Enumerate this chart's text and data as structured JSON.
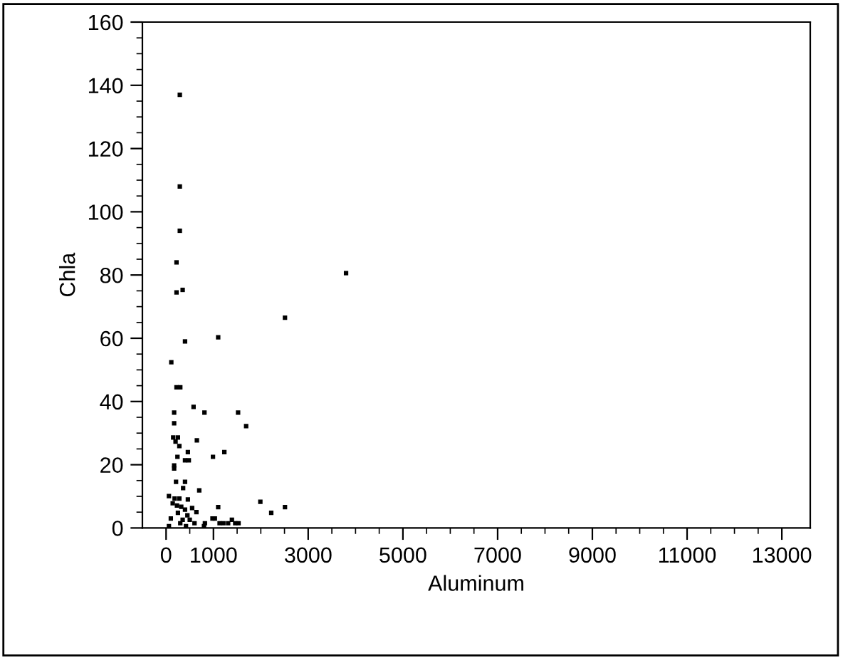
{
  "chart_data": {
    "type": "scatter",
    "xlabel": "Aluminum",
    "ylabel": "Chla",
    "marker": "square",
    "grid": false,
    "legend": false,
    "xlim": [
      -500,
      13600
    ],
    "ylim": [
      0,
      160
    ],
    "xticks": [
      0,
      {
        "value": 500,
        "label": null
      },
      1000,
      {
        "value": 1500,
        "label": null
      },
      {
        "value": 2000,
        "label": null
      },
      {
        "value": 2500,
        "label": null
      },
      3000,
      {
        "value": 3500,
        "label": null
      },
      {
        "value": 4000,
        "label": null
      },
      {
        "value": 4500,
        "label": null
      },
      5000,
      {
        "value": 5500,
        "label": null
      },
      {
        "value": 6000,
        "label": null
      },
      {
        "value": 6500,
        "label": null
      },
      7000,
      {
        "value": 7500,
        "label": null
      },
      {
        "value": 8000,
        "label": null
      },
      {
        "value": 8500,
        "label": null
      },
      9000,
      {
        "value": 9500,
        "label": null
      },
      {
        "value": 10000,
        "label": null
      },
      {
        "value": 10500,
        "label": null
      },
      11000,
      {
        "value": 11500,
        "label": null
      },
      {
        "value": 12000,
        "label": null
      },
      {
        "value": 12500,
        "label": null
      },
      13000
    ],
    "yticks": [
      0,
      {
        "value": 5,
        "label": null
      },
      {
        "value": 10,
        "label": null
      },
      {
        "value": 15,
        "label": null
      },
      20,
      {
        "value": 25,
        "label": null
      },
      {
        "value": 30,
        "label": null
      },
      {
        "value": 35,
        "label": null
      },
      40,
      {
        "value": 45,
        "label": null
      },
      {
        "value": 50,
        "label": null
      },
      {
        "value": 55,
        "label": null
      },
      60,
      {
        "value": 65,
        "label": null
      },
      {
        "value": 70,
        "label": null
      },
      {
        "value": 75,
        "label": null
      },
      80,
      {
        "value": 85,
        "label": null
      },
      {
        "value": 90,
        "label": null
      },
      {
        "value": 95,
        "label": null
      },
      100,
      {
        "value": 105,
        "label": null
      },
      {
        "value": 110,
        "label": null
      },
      {
        "value": 115,
        "label": null
      },
      120,
      {
        "value": 125,
        "label": null
      },
      {
        "value": 130,
        "label": null
      },
      {
        "value": 135,
        "label": null
      },
      140,
      {
        "value": 145,
        "label": null
      },
      {
        "value": 150,
        "label": null
      },
      {
        "value": 155,
        "label": null
      },
      160
    ],
    "series": [
      {
        "color": "#000000",
        "x": [
          290,
          290,
          290,
          220,
          3800,
          220,
          350,
          2510,
          1100,
          400,
          110,
          220,
          300,
          580,
          810,
          1520,
          170,
          1690,
          170,
          150,
          250,
          200,
          280,
          650,
          460,
          1230,
          990,
          240,
          400,
          480,
          170,
          170,
          210,
          400,
          360,
          700,
          60,
          180,
          280,
          460,
          140,
          230,
          320,
          1990,
          2510,
          2220,
          1100,
          400,
          550,
          640,
          250,
          450,
          100,
          350,
          500,
          980,
          1030,
          300,
          600,
          820,
          1130,
          1210,
          1310,
          1390,
          1460,
          1530,
          60,
          420,
          800
        ],
        "values": [
          137,
          108,
          94,
          84,
          80.6,
          74.5,
          75.3,
          66.5,
          60.3,
          59,
          52.4,
          44.5,
          44.5,
          38.3,
          36.5,
          36.5,
          36.5,
          32.2,
          33.1,
          28.6,
          28.6,
          27.3,
          25.9,
          27.7,
          24,
          24,
          22.5,
          22.5,
          21.4,
          21.4,
          19.8,
          18.8,
          14.6,
          14.6,
          12.6,
          11.9,
          10.1,
          9.3,
          9.3,
          9,
          7.8,
          7.1,
          6.7,
          8.3,
          6.6,
          4.8,
          6.6,
          5.8,
          6.3,
          5,
          4.8,
          4,
          3,
          2.6,
          2.6,
          3,
          3,
          1.5,
          1.5,
          1.5,
          1.5,
          1.5,
          1.5,
          2.6,
          1.5,
          1.5,
          0.6,
          0.6,
          0.6
        ]
      }
    ]
  }
}
